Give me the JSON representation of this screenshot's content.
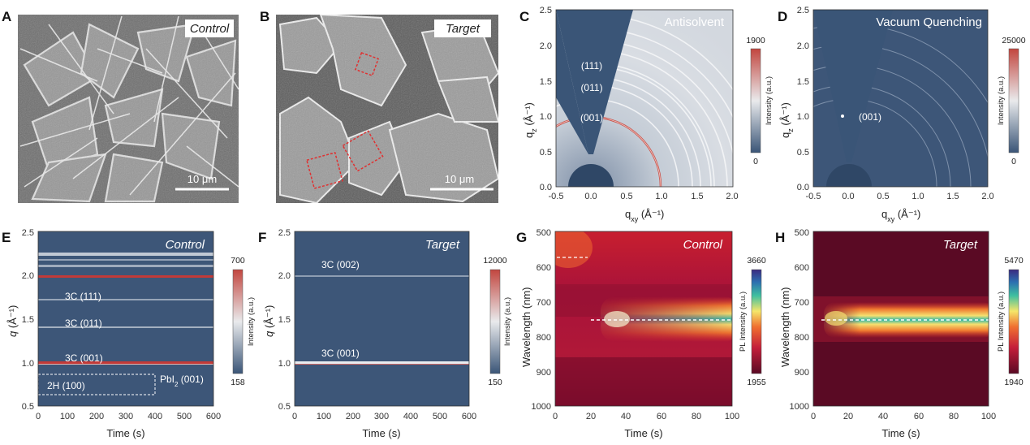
{
  "panels": {
    "A": {
      "label": "A",
      "tag": "Control",
      "scalebar": "10 μm"
    },
    "B": {
      "label": "B",
      "tag": "Target",
      "scalebar": "10 μm"
    },
    "C": {
      "label": "C",
      "title": "Antisolvent",
      "peaks": [
        "(111)",
        "(011)",
        "(001)"
      ],
      "xlabel": "q",
      "xlabel_sub": "xy",
      "xlabel_unit": " (Å⁻¹)",
      "ylabel": "q",
      "ylabel_sub": "z",
      "ylabel_unit": " (Å⁻¹)",
      "xticks": [
        "-0.5",
        "0.0",
        "0.5",
        "1.0",
        "1.5",
        "2.0"
      ],
      "yticks": [
        "0.0",
        "0.5",
        "1.0",
        "1.5",
        "2.0",
        "2.5"
      ],
      "cbar": {
        "max": "1900",
        "min": "0",
        "label": "Intensity (a.u.)"
      }
    },
    "D": {
      "label": "D",
      "title": "Vacuum Quenching",
      "peaks": [
        "(001)"
      ],
      "xlabel": "q",
      "xlabel_sub": "xy",
      "xlabel_unit": " (Å⁻¹)",
      "ylabel": "q",
      "ylabel_sub": "z",
      "ylabel_unit": " (Å⁻¹)",
      "xticks": [
        "-0.5",
        "0.0",
        "0.5",
        "1.0",
        "1.5",
        "2.0"
      ],
      "yticks": [
        "0.0",
        "0.5",
        "1.0",
        "1.5",
        "2.0",
        "2.5"
      ],
      "cbar": {
        "max": "25000",
        "min": "0",
        "label": "Intensity (a.u.)"
      }
    },
    "E": {
      "label": "E",
      "title": "Control",
      "peaks": [
        "3C (111)",
        "3C (011)",
        "3C (001)"
      ],
      "box_label": "2H (100)",
      "pbi_label": "PbI",
      "pbi_sub": "2",
      "pbi_rest": " (001)",
      "xlabel": "Time (s)",
      "ylabel": "q",
      "ylabel_unit": " (Å⁻¹)",
      "xticks": [
        "0",
        "100",
        "200",
        "300",
        "400",
        "500",
        "600"
      ],
      "yticks": [
        "0.5",
        "1.0",
        "1.5",
        "2.0",
        "2.5"
      ],
      "cbar": {
        "max": "700",
        "min": "158",
        "label": "Intensity (a.u.)"
      }
    },
    "F": {
      "label": "F",
      "title": "Target",
      "peaks": [
        "3C (002)",
        "3C (001)"
      ],
      "xlabel": "Time (s)",
      "ylabel": "q",
      "ylabel_unit": " (Å⁻¹)",
      "xticks": [
        "0",
        "100",
        "200",
        "300",
        "400",
        "500",
        "600"
      ],
      "yticks": [
        "0.5",
        "1.0",
        "1.5",
        "2.0",
        "2.5"
      ],
      "cbar": {
        "max": "12000",
        "min": "150",
        "label": "Intensity (a.u.)"
      }
    },
    "G": {
      "label": "G",
      "title": "Control",
      "xlabel": "Time (s)",
      "ylabel": "Wavelength (nm)",
      "xticks": [
        "0",
        "20",
        "40",
        "60",
        "80",
        "100"
      ],
      "yticks": [
        "500",
        "600",
        "700",
        "800",
        "900",
        "1000"
      ],
      "cbar": {
        "max": "3660",
        "min": "1955",
        "label": "PL Intensity (a.u.)"
      }
    },
    "H": {
      "label": "H",
      "title": "Target",
      "xlabel": "Time (s)",
      "ylabel": "Wavelength (nm)",
      "xticks": [
        "0",
        "20",
        "40",
        "60",
        "80",
        "100"
      ],
      "yticks": [
        "500",
        "600",
        "700",
        "800",
        "900",
        "1000"
      ],
      "cbar": {
        "max": "5470",
        "min": "1940",
        "label": "PL Intensity (a.u.)"
      }
    }
  },
  "colors": {
    "deep_blue": "#3a5577",
    "pl_bg": "#5a0a24",
    "pl_hot": "#e8402a"
  }
}
